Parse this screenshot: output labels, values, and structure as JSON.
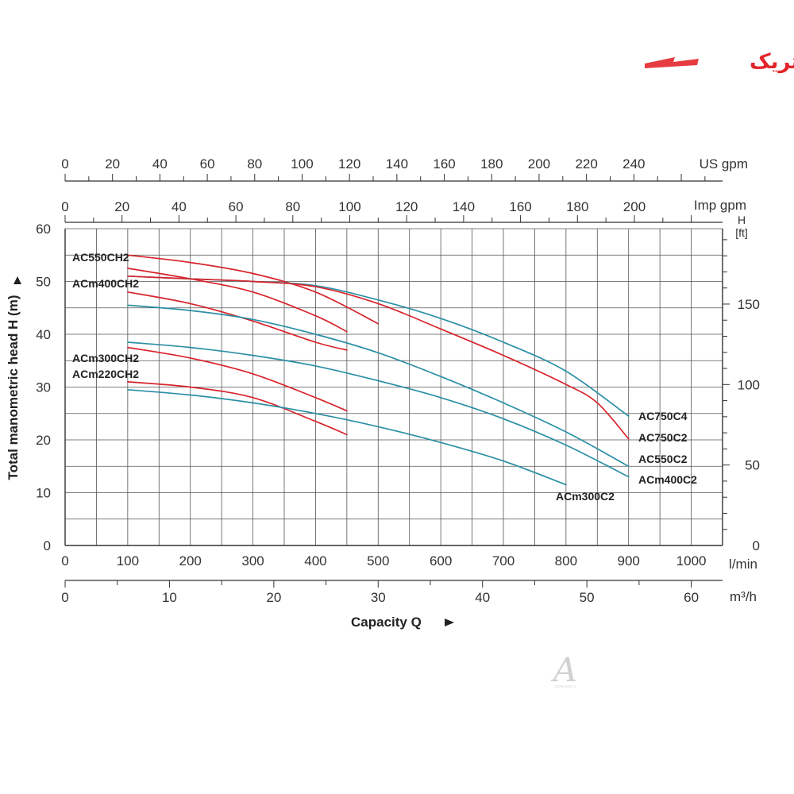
{
  "logo": {
    "text": "آرتاالکتریک",
    "color": "#e3262b"
  },
  "watermark": {
    "letter": "A",
    "text": "artaelectric.ir"
  },
  "chart_data": {
    "type": "line",
    "title": "",
    "ylabel": "Total manometric head H (m)",
    "xlabel": "Capacity Q",
    "xlim": [
      0,
      1050
    ],
    "ylim": [
      0,
      60
    ],
    "grid": true,
    "colors": {
      "red": "#d8232a",
      "blue": "#2a8fa6",
      "grid": "#555555",
      "axis": "#333333"
    },
    "axes": {
      "bottom_main": {
        "unit": "l/min",
        "ticks": [
          "0",
          "100",
          "200",
          "300",
          "400",
          "500",
          "600",
          "700",
          "800",
          "900",
          "1000"
        ],
        "values": [
          0,
          100,
          200,
          300,
          400,
          500,
          600,
          700,
          800,
          900,
          1000
        ]
      },
      "bottom_m3h": {
        "unit": "m³/h",
        "ticks": [
          "0",
          "10",
          "20",
          "30",
          "40",
          "50",
          "60"
        ],
        "values": [
          0,
          10,
          20,
          30,
          40,
          50,
          60
        ]
      },
      "top_usgpm": {
        "unit": "US gpm",
        "ticks": [
          "0",
          "20",
          "40",
          "60",
          "80",
          "100",
          "120",
          "140",
          "160",
          "180",
          "200",
          "220",
          "240"
        ],
        "values": [
          0,
          20,
          40,
          60,
          80,
          100,
          120,
          140,
          160,
          180,
          200,
          220,
          240
        ]
      },
      "top_impgpm": {
        "unit": "Imp gpm",
        "ticks": [
          "0",
          "20",
          "40",
          "60",
          "80",
          "100",
          "120",
          "140",
          "160",
          "180",
          "200"
        ],
        "values": [
          0,
          20,
          40,
          60,
          80,
          100,
          120,
          140,
          160,
          180,
          200
        ]
      },
      "left_m": {
        "ticks": [
          "0",
          "10",
          "20",
          "30",
          "40",
          "50",
          "60"
        ],
        "values": [
          0,
          10,
          20,
          30,
          40,
          50,
          60
        ]
      },
      "right_ft": {
        "unit_top": "H",
        "unit": "[ft]",
        "ticks": [
          "0",
          "50",
          "100",
          "150"
        ],
        "values": [
          0,
          50,
          100,
          150
        ]
      }
    },
    "series": [
      {
        "name": "AC550CH2",
        "color": "red",
        "x": [
          100,
          200,
          300,
          400,
          500
        ],
        "y": [
          55,
          53.6,
          51.5,
          48,
          42
        ]
      },
      {
        "name": "ACm400CH2",
        "color": "red",
        "x": [
          100,
          200,
          300,
          400,
          450
        ],
        "y": [
          52.5,
          50.5,
          48,
          43.5,
          40.5
        ]
      },
      {
        "name": "",
        "color": "red",
        "x": [
          100,
          200,
          300,
          400,
          450
        ],
        "y": [
          48,
          45.8,
          42.5,
          38.5,
          37
        ]
      },
      {
        "name": "",
        "color": "blue",
        "x": [
          100,
          200,
          300,
          400,
          500,
          600,
          700,
          800,
          900
        ],
        "y": [
          51,
          50.5,
          50,
          49.2,
          46.5,
          43,
          38.5,
          33,
          24.5
        ]
      },
      {
        "name": "",
        "color": "blue",
        "x": [
          100,
          200,
          300,
          400,
          500,
          600,
          700,
          800,
          900
        ],
        "y": [
          45.5,
          44.5,
          42.8,
          40,
          36.5,
          32,
          27,
          21.5,
          15
        ]
      },
      {
        "name": "ACm300CH2",
        "color": "red",
        "x": [
          100,
          200,
          300,
          400,
          450
        ],
        "y": [
          37.5,
          35.5,
          32.5,
          28,
          25.5
        ]
      },
      {
        "name": "ACm220CH2",
        "color": "red",
        "x": [
          100,
          200,
          300,
          400,
          450
        ],
        "y": [
          31,
          30,
          28,
          23.5,
          21
        ]
      },
      {
        "name": "",
        "color": "blue",
        "x": [
          100,
          200,
          300,
          400,
          500,
          600,
          700,
          800,
          900
        ],
        "y": [
          38.5,
          37.5,
          36,
          34,
          31.2,
          28,
          24,
          19,
          13
        ]
      },
      {
        "name": "ACm300C2",
        "color": "blue",
        "x": [
          100,
          200,
          300,
          400,
          500,
          600,
          700,
          800
        ],
        "y": [
          29.5,
          28.5,
          27,
          25,
          22.5,
          19.5,
          16,
          11.5
        ]
      },
      {
        "name": "AC750C2",
        "color": "red",
        "x": [
          100,
          200,
          300,
          400,
          500,
          600,
          700,
          800,
          850,
          900
        ],
        "y": [
          51,
          50.5,
          50,
          49,
          45.8,
          41,
          36,
          30.5,
          27,
          20.2
        ]
      }
    ],
    "end_labels": [
      "AC750C4",
      "AC750C2",
      "AC550C2",
      "ACm400C2"
    ]
  }
}
